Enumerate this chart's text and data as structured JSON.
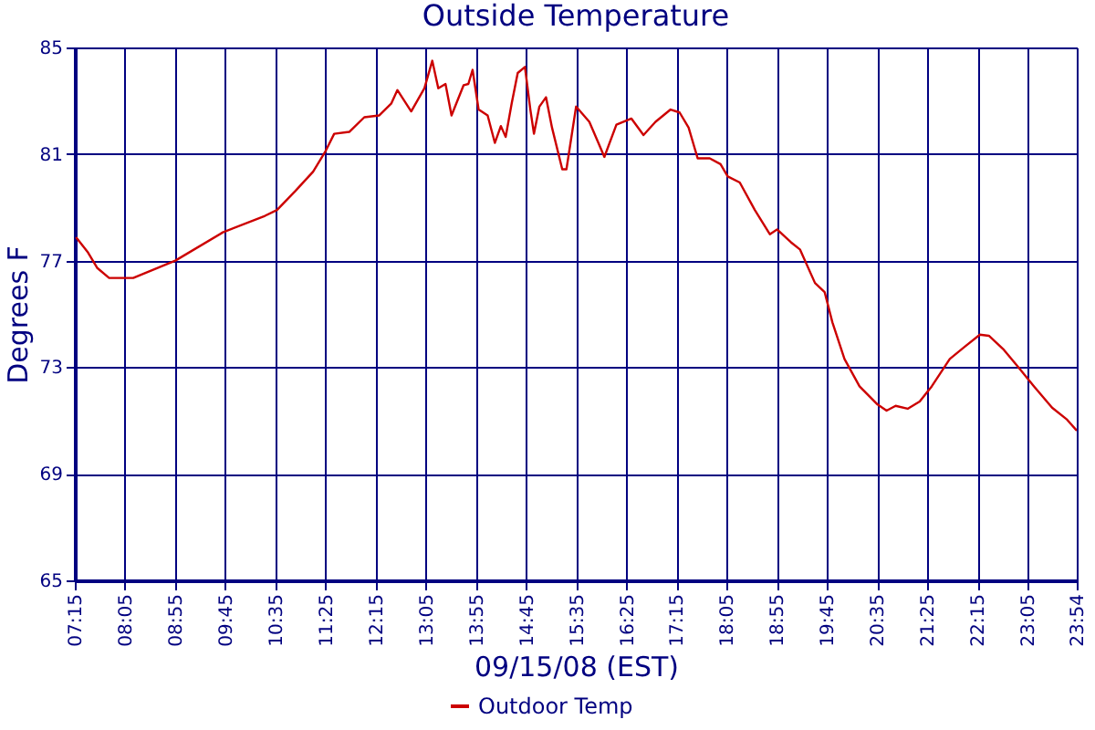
{
  "chart_data": {
    "type": "line",
    "title": "Outside Temperature",
    "xlabel": "09/15/08 (EST)",
    "ylabel": "Degrees F",
    "x": [
      7.27,
      7.47,
      7.62,
      7.82,
      8.22,
      8.92,
      9.71,
      10.41,
      10.61,
      10.91,
      11.21,
      11.41,
      11.56,
      11.81,
      12.06,
      12.31,
      12.51,
      12.61,
      12.84,
      13.06,
      13.19,
      13.29,
      13.41,
      13.51,
      13.71,
      13.79,
      13.86,
      13.96,
      14.11,
      14.23,
      14.33,
      14.41,
      14.51,
      14.61,
      14.73,
      14.82,
      14.88,
      14.97,
      15.08,
      15.18,
      15.35,
      15.42,
      15.58,
      15.8,
      15.95,
      16.05,
      16.25,
      16.5,
      16.7,
      16.9,
      17.15,
      17.3,
      17.45,
      17.6,
      17.8,
      17.98,
      18.1,
      18.3,
      18.55,
      18.8,
      18.92,
      19.15,
      19.3,
      19.55,
      19.71,
      19.84,
      20.04,
      20.29,
      20.59,
      20.74,
      20.89,
      21.09,
      21.29,
      21.49,
      21.79,
      22.04,
      22.29,
      22.44,
      22.69,
      22.94,
      23.19,
      23.49,
      23.74,
      23.9
    ],
    "series": [
      {
        "name": "Outdoor Temp",
        "color": "#cc0000",
        "values": [
          77.88,
          77.3,
          76.73,
          76.35,
          76.35,
          77.0,
          78.06,
          78.68,
          78.9,
          79.6,
          80.34,
          81.08,
          81.76,
          81.83,
          82.38,
          82.45,
          82.9,
          83.4,
          82.6,
          83.47,
          84.5,
          83.47,
          83.63,
          82.45,
          83.58,
          83.63,
          84.16,
          82.67,
          82.45,
          81.42,
          82.05,
          81.64,
          82.9,
          84.04,
          84.27,
          82.67,
          81.76,
          82.78,
          83.13,
          81.99,
          80.43,
          80.43,
          82.78,
          82.21,
          81.42,
          80.89,
          82.1,
          82.33,
          81.71,
          82.21,
          82.67,
          82.56,
          81.99,
          80.84,
          80.84,
          80.62,
          80.16,
          79.93,
          78.9,
          77.99,
          78.17,
          77.69,
          77.42,
          76.16,
          75.82,
          74.68,
          73.31,
          72.28,
          71.6,
          71.37,
          71.55,
          71.44,
          71.71,
          72.28,
          73.31,
          73.77,
          74.22,
          74.18,
          73.65,
          72.97,
          72.28,
          71.48,
          71.03,
          70.62
        ]
      }
    ],
    "xlim": [
      7.25,
      23.9
    ],
    "xticks": [
      {
        "value": 7.25,
        "label": "07:15"
      },
      {
        "value": 8.0833,
        "label": "08:05"
      },
      {
        "value": 8.9167,
        "label": "08:55"
      },
      {
        "value": 9.75,
        "label": "09:45"
      },
      {
        "value": 10.5833,
        "label": "10:35"
      },
      {
        "value": 11.4167,
        "label": "11:25"
      },
      {
        "value": 12.25,
        "label": "12:15"
      },
      {
        "value": 13.0833,
        "label": "13:05"
      },
      {
        "value": 13.9167,
        "label": "13:55"
      },
      {
        "value": 14.75,
        "label": "14:45"
      },
      {
        "value": 15.5833,
        "label": "15:35"
      },
      {
        "value": 16.4167,
        "label": "16:25"
      },
      {
        "value": 17.25,
        "label": "17:15"
      },
      {
        "value": 18.0833,
        "label": "18:05"
      },
      {
        "value": 18.9167,
        "label": "18:55"
      },
      {
        "value": 19.75,
        "label": "19:45"
      },
      {
        "value": 20.5833,
        "label": "20:35"
      },
      {
        "value": 21.4167,
        "label": "21:25"
      },
      {
        "value": 22.25,
        "label": "22:15"
      },
      {
        "value": 23.0833,
        "label": "23:05"
      },
      {
        "value": 23.9,
        "label": "23:54"
      }
    ],
    "ylim": [
      65,
      85
    ],
    "yticks": [
      65,
      69,
      73,
      77,
      81,
      85
    ],
    "grid": true,
    "legend": "bottom",
    "marker": "none",
    "line_style": "solid"
  }
}
